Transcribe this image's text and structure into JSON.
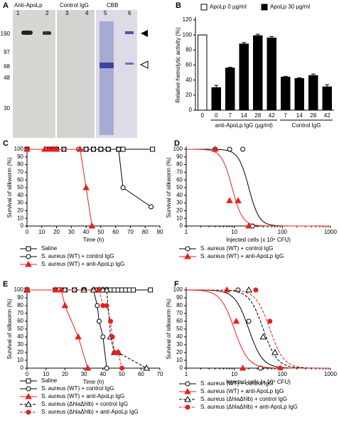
{
  "gel": {
    "panel": "A",
    "lanes": [
      "Anti-ApoLp",
      "Control IgG",
      "CBB"
    ],
    "lane_numbers": [
      "1",
      "2",
      "3",
      "4",
      "5",
      "6"
    ],
    "markers": [
      "190",
      "97",
      "68",
      "48",
      "30"
    ]
  },
  "chart_data": [
    {
      "type": "bar",
      "panel": "B",
      "ylabel": "Relative hemolytic activity (%)",
      "categories": [
        "0",
        "0",
        "7",
        "14",
        "28",
        "42",
        "7",
        "14",
        "28",
        "42"
      ],
      "group_labels": [
        "anti-ApoLp IgG (µg/ml)",
        "Control IgG"
      ],
      "series": [
        {
          "name": "ApoLp 0 µg/ml",
          "color": "#ffffff",
          "values": [
            100,
            null,
            null,
            null,
            null,
            null,
            null,
            null,
            null,
            null
          ],
          "errors": [
            0,
            null,
            null,
            null,
            null,
            null,
            null,
            null,
            null,
            null
          ]
        },
        {
          "name": "ApoLp 30 µg/ml",
          "color": "#000000",
          "values": [
            null,
            30,
            56,
            88,
            99,
            96,
            44,
            42,
            46,
            31
          ],
          "errors": [
            null,
            3,
            1,
            2,
            2,
            2,
            1,
            1,
            2,
            3
          ]
        }
      ],
      "ylim": [
        0,
        120
      ],
      "yticks": [
        0,
        20,
        40,
        60,
        80,
        100,
        120
      ]
    },
    {
      "type": "line",
      "panel": "C",
      "xlabel": "Time (h)",
      "ylabel": "Survival of silkworm (%)",
      "xlim": [
        0,
        90
      ],
      "xticks": [
        0,
        10,
        20,
        30,
        40,
        50,
        60,
        70,
        80,
        90
      ],
      "ylim": [
        0,
        100
      ],
      "yticks": [
        0,
        10,
        20,
        30,
        40,
        50,
        60,
        70,
        80,
        90,
        100
      ],
      "series": [
        {
          "name": "Saline",
          "color": "#000000",
          "marker": "square",
          "filled": false,
          "dashed": false,
          "x": [
            0,
            13,
            15,
            17,
            20,
            25,
            40,
            45,
            50,
            55,
            62,
            65,
            85
          ],
          "values": [
            100,
            100,
            100,
            100,
            100,
            100,
            100,
            100,
            100,
            100,
            100,
            100,
            100
          ]
        },
        {
          "name": "S. aureus (WT) + control IgG",
          "color": "#000000",
          "marker": "circle",
          "filled": false,
          "dashed": false,
          "x": [
            0,
            13,
            15,
            18,
            20,
            25,
            35,
            40,
            45,
            50,
            55,
            62,
            65,
            84
          ],
          "values": [
            100,
            100,
            100,
            100,
            100,
            100,
            100,
            100,
            100,
            100,
            100,
            100,
            50,
            25
          ]
        },
        {
          "name": "S. aureus (WT) + anti-ApoLp IgG",
          "color": "#e8211b",
          "marker": "triangle",
          "filled": true,
          "dashed": false,
          "x": [
            0,
            12,
            15,
            18,
            20,
            36,
            40,
            44
          ],
          "values": [
            100,
            100,
            100,
            100,
            100,
            100,
            50,
            0
          ]
        }
      ]
    },
    {
      "type": "scatter",
      "panel": "D",
      "xlabel": "Injected cells (x 10⁶ CFU)",
      "ylabel": "Survival of silkworm (%)",
      "log_x": true,
      "xlim": [
        1,
        1000
      ],
      "xticks": [
        1,
        10,
        100,
        1000
      ],
      "ylim": [
        0,
        100
      ],
      "yticks": [
        0,
        10,
        20,
        30,
        40,
        50,
        60,
        70,
        80,
        90,
        100
      ],
      "series": [
        {
          "name": "S. aureus (WT) + control IgG",
          "color": "#000000",
          "marker": "circle",
          "filled": false,
          "dashed": false,
          "ld50": 20,
          "hill": 4,
          "x": [
            4,
            8,
            15,
            24
          ],
          "values": [
            100,
            100,
            100,
            0
          ]
        },
        {
          "name": "S. aureus (WT) + anti-ApoLp IgG",
          "color": "#e8211b",
          "marker": "triangle",
          "filled": true,
          "dashed": false,
          "ld50": 9,
          "hill": 4,
          "x": [
            4,
            8,
            12,
            20
          ],
          "values": [
            100,
            33,
            33,
            0
          ]
        }
      ]
    },
    {
      "type": "line",
      "panel": "E",
      "xlabel": "Time (h)",
      "ylabel": "Survival of silkworm (%)",
      "xlim": [
        0,
        70
      ],
      "xticks": [
        0,
        10,
        20,
        30,
        40,
        50,
        60,
        70
      ],
      "ylim": [
        0,
        100
      ],
      "yticks": [
        0,
        10,
        20,
        30,
        40,
        50,
        60,
        70,
        80,
        90,
        100
      ],
      "series": [
        {
          "name": "Saline",
          "color": "#000000",
          "marker": "square",
          "filled": false,
          "dashed": false,
          "x": [
            0,
            15,
            17,
            20,
            25,
            30,
            36,
            38,
            40,
            42,
            44,
            46,
            48,
            50,
            52,
            54,
            56,
            65
          ],
          "values": [
            100,
            100,
            100,
            100,
            100,
            100,
            100,
            100,
            100,
            100,
            100,
            100,
            100,
            100,
            100,
            100,
            100,
            100
          ]
        },
        {
          "name": "S. aureus (WT) + control IgG",
          "color": "#000000",
          "marker": "circle",
          "filled": false,
          "dashed": false,
          "x": [
            0,
            15,
            20,
            25,
            30,
            35,
            37,
            38,
            40,
            42
          ],
          "values": [
            100,
            100,
            100,
            100,
            100,
            100,
            80,
            60,
            40,
            0
          ]
        },
        {
          "name": "S. aureus (WT) + anti-ApoLp IgG",
          "color": "#e8211b",
          "marker": "triangle",
          "filled": true,
          "dashed": false,
          "x": [
            0,
            15,
            18,
            20,
            27,
            32
          ],
          "values": [
            100,
            100,
            100,
            80,
            40,
            0
          ]
        },
        {
          "name": "S. aureus (ΔhlaΔhlb) + control IgG",
          "color": "#000000",
          "marker": "triangle",
          "filled": false,
          "dashed": true,
          "x": [
            0,
            30,
            35,
            38,
            40,
            42,
            44,
            46,
            48,
            63
          ],
          "values": [
            100,
            100,
            100,
            100,
            100,
            100,
            40,
            20,
            20,
            0
          ]
        },
        {
          "name": "S. aureus (ΔhlaΔhlb) + anti-ApoLp IgG",
          "color": "#e8211b",
          "marker": "circle",
          "filled": true,
          "dashed": true,
          "x": [
            0,
            38,
            40,
            42,
            44,
            45,
            46,
            48,
            50
          ],
          "values": [
            100,
            100,
            80,
            80,
            60,
            40,
            20,
            20,
            0
          ]
        }
      ]
    },
    {
      "type": "scatter",
      "panel": "F",
      "xlabel": "Injected cells (x 10⁶ CFU)",
      "ylabel": "Survival of silkworm (%)",
      "log_x": true,
      "xlim": [
        1,
        1000
      ],
      "xticks": [
        1,
        10,
        100,
        1000
      ],
      "ylim": [
        0,
        100
      ],
      "yticks": [
        0,
        10,
        20,
        30,
        40,
        50,
        60,
        70,
        80,
        90,
        100
      ],
      "series": [
        {
          "name": "S. aureus (WT) + control IgG",
          "color": "#000000",
          "marker": "circle",
          "filled": false,
          "dashed": false,
          "ld50": 20,
          "hill": 3,
          "x": [
            12,
            20,
            35
          ],
          "values": [
            100,
            60,
            0
          ]
        },
        {
          "name": "S. aureus (WT) + anti-ApoLp IgG",
          "color": "#e8211b",
          "marker": "triangle",
          "filled": true,
          "dashed": false,
          "ld50": 10,
          "hill": 3,
          "x": [
            7,
            11,
            15
          ],
          "values": [
            100,
            60,
            0
          ]
        },
        {
          "name": "S. aureus (ΔhlaΔhlb) + control IgG",
          "color": "#000000",
          "marker": "triangle",
          "filled": false,
          "dashed": true,
          "ld50": 40,
          "hill": 3,
          "x": [
            20,
            40,
            70
          ],
          "values": [
            100,
            40,
            20
          ]
        },
        {
          "name": "S. aureus (ΔhlaΔhlb) + anti-ApoLp IgG",
          "color": "#e8211b",
          "marker": "circle",
          "filled": true,
          "dashed": true,
          "ld50": 55,
          "hill": 3,
          "x": [
            28,
            55,
            90
          ],
          "values": [
            100,
            60,
            0
          ]
        }
      ]
    }
  ]
}
